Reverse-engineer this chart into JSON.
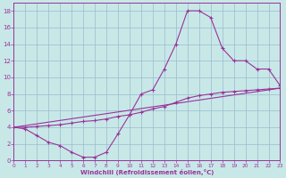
{
  "xlabel": "Windchill (Refroidissement éolien,°C)",
  "bg_color": "#c8e8e8",
  "grid_color": "#99bbcc",
  "line_color": "#993399",
  "xlim": [
    0,
    23
  ],
  "ylim": [
    0,
    19
  ],
  "xticks": [
    0,
    1,
    2,
    3,
    4,
    5,
    6,
    7,
    8,
    9,
    10,
    11,
    12,
    13,
    14,
    15,
    16,
    17,
    18,
    19,
    20,
    21,
    22,
    23
  ],
  "yticks": [
    0,
    2,
    4,
    6,
    8,
    10,
    12,
    14,
    16,
    18
  ],
  "line1_x": [
    0,
    1,
    2,
    3,
    4,
    5,
    6,
    7,
    8,
    9,
    10,
    11,
    12,
    13,
    14,
    15,
    16,
    17,
    18,
    19,
    20,
    21,
    22,
    23
  ],
  "line1_y": [
    4.0,
    3.8,
    3.0,
    2.2,
    1.8,
    1.0,
    0.4,
    0.4,
    1.0,
    3.2,
    5.5,
    8.0,
    8.5,
    11.0,
    14.0,
    18.0,
    18.0,
    17.2,
    13.5,
    12.0,
    12.0,
    11.0,
    11.0,
    9.0
  ],
  "line2_x": [
    0,
    1,
    2,
    3,
    4,
    5,
    6,
    7,
    8,
    9,
    10,
    11,
    12,
    13,
    14,
    15,
    16,
    17,
    18,
    19,
    20,
    21,
    22,
    23
  ],
  "line2_y": [
    4.0,
    4.0,
    4.1,
    4.2,
    4.3,
    4.5,
    4.7,
    4.8,
    5.0,
    5.3,
    5.5,
    5.8,
    6.2,
    6.5,
    7.0,
    7.5,
    7.8,
    8.0,
    8.2,
    8.3,
    8.4,
    8.5,
    8.6,
    8.7
  ],
  "line3_x": [
    0,
    23
  ],
  "line3_y": [
    4.0,
    8.7
  ]
}
